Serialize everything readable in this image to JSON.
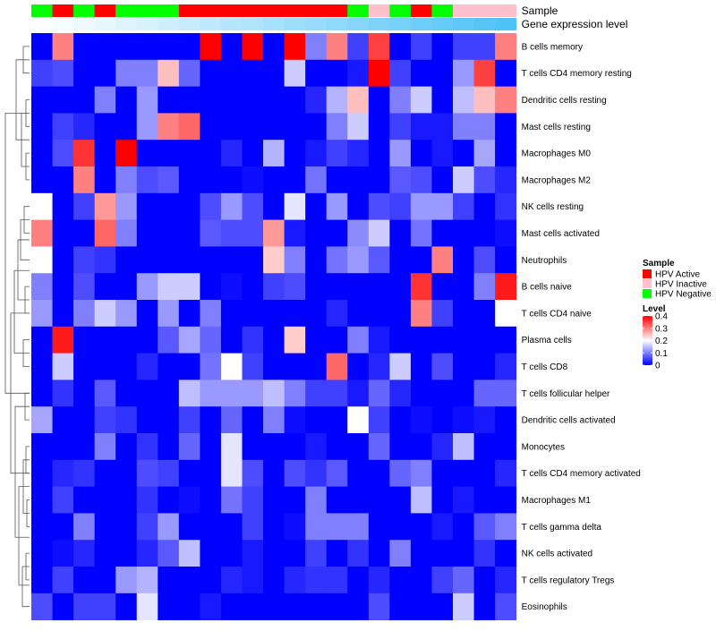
{
  "chart_data": {
    "type": "heatmap",
    "annotation_tracks": [
      {
        "name": "Sample",
        "categories": [
          "neg",
          "act",
          "neg",
          "act",
          "neg",
          "neg",
          "neg",
          "act",
          "act",
          "act",
          "act",
          "act",
          "act",
          "act",
          "act",
          "neg",
          "inact",
          "neg",
          "act",
          "neg",
          "inact",
          "inact",
          "inact"
        ]
      },
      {
        "name": "Gene expression level",
        "values": [
          0.0,
          0.045,
          0.09,
          0.136,
          0.182,
          0.227,
          0.273,
          0.318,
          0.364,
          0.409,
          0.455,
          0.5,
          0.545,
          0.591,
          0.636,
          0.682,
          0.727,
          0.773,
          0.818,
          0.864,
          0.909,
          0.955,
          1.0
        ]
      }
    ],
    "rows": [
      {
        "label": "B cells memory",
        "values": [
          0,
          0.3,
          0,
          0,
          0,
          0,
          0,
          0,
          0.4,
          0,
          0.4,
          0,
          0.4,
          0.1,
          0.3,
          0.05,
          0.35,
          0,
          0.05,
          0,
          0.05,
          0.05,
          0.3
        ]
      },
      {
        "label": "T cells CD4 memory resting",
        "values": [
          0.05,
          0.06,
          0,
          0,
          0.1,
          0.1,
          0.25,
          0.08,
          0,
          0,
          0,
          0,
          0.16,
          0,
          0,
          0.02,
          0.4,
          0.05,
          0,
          0,
          0.12,
          0.35,
          0
        ]
      },
      {
        "label": "Dendritic cells resting",
        "values": [
          0,
          0,
          0,
          0.1,
          0,
          0.12,
          0,
          0,
          0,
          0,
          0,
          0,
          0,
          0.03,
          0.14,
          0.25,
          0,
          0.1,
          0.16,
          0,
          0.15,
          0.25,
          0.3
        ]
      },
      {
        "label": "Mast cells resting",
        "values": [
          0,
          0.05,
          0.03,
          0,
          0,
          0.12,
          0.3,
          0.32,
          0,
          0,
          0,
          0,
          0,
          0,
          0.1,
          0.16,
          0,
          0.05,
          0.02,
          0.02,
          0.1,
          0.1,
          0
        ]
      },
      {
        "label": "Macrophages M0",
        "values": [
          0,
          0.06,
          0.36,
          0,
          0.4,
          0,
          0,
          0,
          0,
          0.03,
          0,
          0.14,
          0,
          0.02,
          0.05,
          0.03,
          0,
          0.12,
          0,
          0.02,
          0,
          0.13,
          0
        ]
      },
      {
        "label": "Macrophages M2",
        "values": [
          0,
          0,
          0.3,
          0,
          0.1,
          0.06,
          0.07,
          0,
          0,
          0,
          0.01,
          0,
          0,
          0.09,
          0,
          0,
          0,
          0.07,
          0.06,
          0,
          0.16,
          0.06,
          0.03
        ]
      },
      {
        "label": "NK cells resting",
        "values": [
          0.2,
          0,
          0.05,
          0.28,
          0.12,
          0,
          0,
          0,
          0.06,
          0.12,
          0.06,
          0,
          0.18,
          0,
          0.12,
          0,
          0.06,
          0.05,
          0.12,
          0.12,
          0.05,
          0,
          0.04
        ]
      },
      {
        "label": "Mast cells activated",
        "values": [
          0.3,
          0,
          0,
          0.32,
          0.1,
          0,
          0,
          0,
          0.07,
          0.06,
          0.06,
          0.28,
          0.02,
          0,
          0,
          0.11,
          0.16,
          0,
          0.09,
          0,
          0,
          0,
          0.01
        ]
      },
      {
        "label": "Neutrophils",
        "values": [
          0.2,
          0,
          0.05,
          0.04,
          0,
          0,
          0,
          0,
          0,
          0,
          0,
          0.24,
          0.1,
          0,
          0.09,
          0.12,
          0.07,
          0,
          0,
          0.3,
          0,
          0.06,
          0
        ]
      },
      {
        "label": "B cells naive",
        "values": [
          0.1,
          0,
          0.06,
          0,
          0,
          0.12,
          0.16,
          0.16,
          0,
          0.01,
          0,
          0.05,
          0.06,
          0,
          0,
          0,
          0,
          0,
          0.36,
          0,
          0,
          0.1,
          0.38
        ]
      },
      {
        "label": "T cells CD4 naive",
        "values": [
          0.12,
          0,
          0.1,
          0.16,
          0.12,
          0,
          0.12,
          0,
          0.1,
          0,
          0,
          0,
          0,
          0,
          0.03,
          0,
          0,
          0,
          0.3,
          0.05,
          0,
          0,
          0.2
        ]
      },
      {
        "label": "Plasma cells",
        "values": [
          0,
          0.38,
          0,
          0,
          0,
          0,
          0.07,
          0.13,
          0.08,
          0,
          0.04,
          0,
          0.24,
          0,
          0,
          0.1,
          0.02,
          0,
          0,
          0,
          0,
          0,
          0
        ]
      },
      {
        "label": "T cells CD8",
        "values": [
          0,
          0.16,
          0,
          0,
          0,
          0.03,
          0,
          0,
          0.09,
          0.2,
          0.05,
          0,
          0,
          0,
          0.32,
          0,
          0.03,
          0.16,
          0,
          0.06,
          0,
          0,
          0.03
        ]
      },
      {
        "label": "T cells follicular helper",
        "values": [
          0,
          0.04,
          0,
          0.07,
          0,
          0,
          0,
          0.15,
          0.12,
          0.12,
          0.12,
          0.15,
          0.1,
          0.05,
          0.05,
          0.02,
          0.08,
          0.03,
          0,
          0,
          0,
          0.08,
          0.08
        ]
      },
      {
        "label": "Dendritic cells activated",
        "values": [
          0.13,
          0,
          0,
          0.05,
          0.04,
          0,
          0,
          0.05,
          0,
          0.08,
          0,
          0.1,
          0.01,
          0,
          0,
          0.2,
          0.05,
          0,
          0.01,
          0,
          0.01,
          0.02,
          0
        ]
      },
      {
        "label": "Monocytes",
        "values": [
          0,
          0,
          0,
          0.1,
          0,
          0.04,
          0,
          0.08,
          0,
          0.18,
          0,
          0,
          0,
          0.02,
          0,
          0,
          0.08,
          0,
          0,
          0.03,
          0.15,
          0,
          0
        ]
      },
      {
        "label": "T cells CD4 memory activated",
        "values": [
          0,
          0.03,
          0.04,
          0,
          0,
          0.06,
          0.05,
          0,
          0,
          0.18,
          0.06,
          0,
          0.06,
          0.04,
          0.07,
          0,
          0,
          0.08,
          0.1,
          0,
          0,
          0,
          0.03
        ]
      },
      {
        "label": "Macrophages M1",
        "values": [
          0,
          0.05,
          0,
          0,
          0,
          0.04,
          0,
          0.01,
          0,
          0.09,
          0.05,
          0,
          0,
          0.1,
          0,
          0,
          0,
          0,
          0.15,
          0,
          0.02,
          0,
          0
        ]
      },
      {
        "label": "T cells gamma delta",
        "values": [
          0,
          0,
          0.1,
          0,
          0,
          0.05,
          0.12,
          0,
          0,
          0,
          0.05,
          0,
          0.01,
          0.1,
          0.1,
          0.1,
          0,
          0,
          0,
          0.02,
          0,
          0.07,
          0.1
        ]
      },
      {
        "label": "NK cells activated",
        "values": [
          0,
          0.01,
          0.03,
          0,
          0,
          0.03,
          0.07,
          0.15,
          0,
          0,
          0.02,
          0,
          0,
          0.05,
          0,
          0.04,
          0,
          0.1,
          0,
          0,
          0,
          0.04,
          0
        ]
      },
      {
        "label": "T cells regulatory  Tregs",
        "values": [
          0,
          0.05,
          0,
          0,
          0.12,
          0.14,
          0,
          0,
          0,
          0.03,
          0.02,
          0,
          0.03,
          0.04,
          0.04,
          0,
          0.03,
          0,
          0,
          0.05,
          0.08,
          0,
          0.03
        ]
      },
      {
        "label": "Eosinophils",
        "values": [
          0.06,
          0,
          0.05,
          0.05,
          0,
          0.18,
          0,
          0,
          0.02,
          0,
          0,
          0,
          0,
          0,
          0,
          0,
          0.06,
          0,
          0,
          0,
          0.16,
          0,
          0.06
        ]
      }
    ],
    "legends": {
      "sample": {
        "title": "Sample",
        "items": [
          {
            "label": "HPV Active",
            "color": "#ff0000"
          },
          {
            "label": "HPV Inactive",
            "color": "#ffc0cb"
          },
          {
            "label": "HPV Negative",
            "color": "#00ff00"
          }
        ]
      },
      "level": {
        "title": "Level",
        "ticks": [
          "0.4",
          "0.3",
          "0.2",
          "0.1",
          "0"
        ],
        "tick_values": [
          0.4,
          0.3,
          0.2,
          0.1,
          0
        ],
        "range": [
          0,
          0.4
        ]
      }
    },
    "color_scale": {
      "low": "#0000ff",
      "mid": "#ffffff",
      "high": "#ff0000",
      "domain": [
        0,
        0.2,
        0.4
      ]
    },
    "sample_colors": {
      "act": "#ff0000",
      "inact": "#ffc0cb",
      "neg": "#00ff00"
    },
    "expression_colors": {
      "low": "#ffffff",
      "high": "#4fc3f7"
    }
  }
}
